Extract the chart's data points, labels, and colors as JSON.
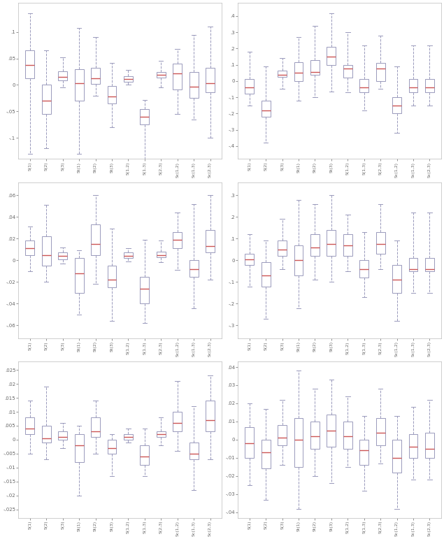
{
  "figsize": [
    6.35,
    7.71
  ],
  "dpi": 100,
  "box_facecolor": "white",
  "box_edgecolor": "#9999bb",
  "median_color": "#cc5555",
  "whisker_color": "#9999bb",
  "cap_color": "#9999bb",
  "background": "#ffffff",
  "x_labels": [
    "S(1)",
    "S(2)",
    "S(3)",
    "St(1)",
    "St(2)",
    "St(3)",
    "S(1,2)",
    "S(1,3)",
    "S(2,3)",
    "Sc(1,2)",
    "Sc(1,3)",
    "Sc(2,3)"
  ],
  "plots": [
    {
      "col": 0,
      "row": 0,
      "ylim": [
        -0.14,
        0.155
      ],
      "yticks": [
        -0.1,
        -0.05,
        0.0,
        0.05,
        0.1
      ],
      "boxes": [
        {
          "q1": 0.013,
          "med": 0.038,
          "q3": 0.065,
          "whislo": -0.13,
          "whishi": 0.135
        },
        {
          "q1": -0.055,
          "med": -0.03,
          "q3": 0.0,
          "whislo": -0.12,
          "whishi": 0.065
        },
        {
          "q1": 0.008,
          "med": 0.015,
          "q3": 0.026,
          "whislo": -0.005,
          "whishi": 0.052
        },
        {
          "q1": -0.03,
          "med": 0.003,
          "q3": 0.03,
          "whislo": -0.13,
          "whishi": 0.108
        },
        {
          "q1": 0.002,
          "med": 0.013,
          "q3": 0.033,
          "whislo": -0.02,
          "whishi": 0.09
        },
        {
          "q1": -0.035,
          "med": -0.022,
          "q3": -0.002,
          "whislo": -0.08,
          "whishi": 0.042
        },
        {
          "q1": 0.006,
          "med": 0.011,
          "q3": 0.016,
          "whislo": 0.001,
          "whishi": 0.028
        },
        {
          "q1": -0.075,
          "med": -0.06,
          "q3": -0.046,
          "whislo": -0.14,
          "whishi": -0.028
        },
        {
          "q1": 0.014,
          "med": 0.019,
          "q3": 0.025,
          "whislo": -0.004,
          "whishi": 0.045
        },
        {
          "q1": -0.008,
          "med": 0.022,
          "q3": 0.04,
          "whislo": -0.055,
          "whishi": 0.068
        },
        {
          "q1": -0.025,
          "med": -0.003,
          "q3": 0.025,
          "whislo": -0.065,
          "whishi": 0.095
        },
        {
          "q1": -0.014,
          "med": 0.003,
          "q3": 0.033,
          "whislo": -0.1,
          "whishi": 0.11
        }
      ]
    },
    {
      "col": 1,
      "row": 0,
      "ylim": [
        -0.48,
        0.48
      ],
      "yticks": [
        -0.4,
        -0.3,
        -0.2,
        -0.1,
        0.0,
        0.1,
        0.2,
        0.3,
        0.4
      ],
      "boxes": [
        {
          "q1": -0.08,
          "med": -0.04,
          "q3": 0.01,
          "whislo": -0.15,
          "whishi": 0.18
        },
        {
          "q1": -0.22,
          "med": -0.18,
          "q3": -0.12,
          "whislo": -0.38,
          "whishi": 0.09
        },
        {
          "q1": 0.025,
          "med": 0.04,
          "q3": 0.065,
          "whislo": -0.05,
          "whishi": 0.14
        },
        {
          "q1": 0.0,
          "med": 0.05,
          "q3": 0.115,
          "whislo": -0.12,
          "whishi": 0.27
        },
        {
          "q1": 0.04,
          "med": 0.057,
          "q3": 0.13,
          "whislo": -0.1,
          "whishi": 0.34
        },
        {
          "q1": 0.1,
          "med": 0.15,
          "q3": 0.21,
          "whislo": -0.065,
          "whishi": 0.415
        },
        {
          "q1": 0.02,
          "med": 0.075,
          "q3": 0.1,
          "whislo": -0.07,
          "whishi": 0.3
        },
        {
          "q1": -0.07,
          "med": -0.04,
          "q3": 0.01,
          "whislo": -0.18,
          "whishi": 0.22
        },
        {
          "q1": 0.0,
          "med": 0.075,
          "q3": 0.11,
          "whislo": -0.05,
          "whishi": 0.28
        },
        {
          "q1": -0.2,
          "med": -0.15,
          "q3": -0.1,
          "whislo": -0.32,
          "whishi": 0.09
        },
        {
          "q1": -0.07,
          "med": -0.04,
          "q3": 0.01,
          "whislo": -0.15,
          "whishi": 0.22
        },
        {
          "q1": -0.07,
          "med": -0.04,
          "q3": 0.01,
          "whislo": -0.15,
          "whishi": 0.22
        }
      ]
    },
    {
      "col": 0,
      "row": 1,
      "ylim": [
        -0.072,
        0.072
      ],
      "yticks": [
        -0.06,
        -0.04,
        -0.02,
        0.0,
        0.02,
        0.04,
        0.06
      ],
      "boxes": [
        {
          "q1": 0.005,
          "med": 0.011,
          "q3": 0.018,
          "whislo": -0.01,
          "whishi": 0.031
        },
        {
          "q1": -0.005,
          "med": 0.005,
          "q3": 0.022,
          "whislo": -0.02,
          "whishi": 0.051
        },
        {
          "q1": 0.001,
          "med": 0.004,
          "q3": 0.007,
          "whislo": -0.003,
          "whishi": 0.012
        },
        {
          "q1": -0.03,
          "med": -0.012,
          "q3": 0.002,
          "whislo": -0.05,
          "whishi": 0.009
        },
        {
          "q1": 0.005,
          "med": 0.015,
          "q3": 0.033,
          "whislo": -0.022,
          "whishi": 0.06
        },
        {
          "q1": -0.025,
          "med": -0.018,
          "q3": -0.005,
          "whislo": -0.056,
          "whishi": 0.029
        },
        {
          "q1": 0.002,
          "med": 0.004,
          "q3": 0.007,
          "whislo": -0.001,
          "whishi": 0.011
        },
        {
          "q1": -0.04,
          "med": -0.026,
          "q3": -0.015,
          "whislo": -0.058,
          "whishi": 0.019
        },
        {
          "q1": 0.003,
          "med": 0.005,
          "q3": 0.008,
          "whislo": -0.002,
          "whishi": 0.018
        },
        {
          "q1": 0.011,
          "med": 0.019,
          "q3": 0.026,
          "whislo": -0.009,
          "whishi": 0.044
        },
        {
          "q1": -0.015,
          "med": -0.008,
          "q3": 0.0,
          "whislo": -0.044,
          "whishi": 0.052
        },
        {
          "q1": 0.007,
          "med": 0.013,
          "q3": 0.028,
          "whislo": -0.018,
          "whishi": 0.06
        }
      ]
    },
    {
      "col": 1,
      "row": 1,
      "ylim": [
        -0.36,
        0.36
      ],
      "yticks": [
        -0.3,
        -0.2,
        -0.1,
        0.0,
        0.1,
        0.2,
        0.3
      ],
      "boxes": [
        {
          "q1": -0.02,
          "med": 0.005,
          "q3": 0.03,
          "whislo": -0.12,
          "whishi": 0.12
        },
        {
          "q1": -0.12,
          "med": -0.07,
          "q3": -0.01,
          "whislo": -0.27,
          "whishi": 0.09
        },
        {
          "q1": 0.02,
          "med": 0.05,
          "q3": 0.09,
          "whislo": -0.04,
          "whishi": 0.19
        },
        {
          "q1": -0.07,
          "med": 0.0,
          "q3": 0.07,
          "whislo": -0.22,
          "whishi": 0.28
        },
        {
          "q1": 0.02,
          "med": 0.06,
          "q3": 0.12,
          "whislo": -0.09,
          "whishi": 0.26
        },
        {
          "q1": 0.02,
          "med": 0.075,
          "q3": 0.14,
          "whislo": -0.1,
          "whishi": 0.3
        },
        {
          "q1": 0.02,
          "med": 0.07,
          "q3": 0.12,
          "whislo": -0.05,
          "whishi": 0.21
        },
        {
          "q1": -0.08,
          "med": -0.04,
          "q3": 0.0,
          "whislo": -0.17,
          "whishi": 0.13
        },
        {
          "q1": 0.03,
          "med": 0.075,
          "q3": 0.13,
          "whislo": -0.04,
          "whishi": 0.26
        },
        {
          "q1": -0.15,
          "med": -0.09,
          "q3": -0.02,
          "whislo": -0.28,
          "whishi": 0.09
        },
        {
          "q1": -0.05,
          "med": -0.04,
          "q3": 0.01,
          "whislo": -0.15,
          "whishi": 0.22
        },
        {
          "q1": -0.05,
          "med": -0.04,
          "q3": 0.01,
          "whislo": -0.15,
          "whishi": 0.22
        }
      ]
    },
    {
      "col": 0,
      "row": 2,
      "ylim": [
        -0.028,
        0.028
      ],
      "yticks": [
        -0.025,
        -0.02,
        -0.015,
        -0.01,
        -0.005,
        0.0,
        0.005,
        0.01,
        0.015,
        0.02,
        0.025
      ],
      "boxes": [
        {
          "q1": 0.002,
          "med": 0.004,
          "q3": 0.008,
          "whislo": -0.005,
          "whishi": 0.014
        },
        {
          "q1": -0.001,
          "med": 0.0005,
          "q3": 0.005,
          "whislo": -0.007,
          "whishi": 0.019
        },
        {
          "q1": 0.0,
          "med": 0.001,
          "q3": 0.003,
          "whislo": -0.003,
          "whishi": 0.006
        },
        {
          "q1": -0.008,
          "med": -0.002,
          "q3": 0.002,
          "whislo": -0.02,
          "whishi": 0.005
        },
        {
          "q1": 0.001,
          "med": 0.003,
          "q3": 0.008,
          "whislo": -0.005,
          "whishi": 0.014
        },
        {
          "q1": -0.005,
          "med": -0.003,
          "q3": 0.0,
          "whislo": -0.013,
          "whishi": 0.002
        },
        {
          "q1": 0.0,
          "med": 0.001,
          "q3": 0.002,
          "whislo": -0.001,
          "whishi": 0.004
        },
        {
          "q1": -0.009,
          "med": -0.006,
          "q3": -0.002,
          "whislo": -0.013,
          "whishi": 0.004
        },
        {
          "q1": 0.001,
          "med": 0.002,
          "q3": 0.003,
          "whislo": -0.002,
          "whishi": 0.008
        },
        {
          "q1": 0.003,
          "med": 0.006,
          "q3": 0.01,
          "whislo": -0.004,
          "whishi": 0.021
        },
        {
          "q1": -0.007,
          "med": -0.005,
          "q3": -0.001,
          "whislo": -0.018,
          "whishi": 0.012
        },
        {
          "q1": 0.003,
          "med": 0.007,
          "q3": 0.014,
          "whislo": -0.007,
          "whishi": 0.023
        }
      ]
    },
    {
      "col": 1,
      "row": 2,
      "ylim": [
        -0.043,
        0.043
      ],
      "yticks": [
        -0.04,
        -0.03,
        -0.02,
        -0.01,
        0.0,
        0.01,
        0.02,
        0.03,
        0.04
      ],
      "boxes": [
        {
          "q1": -0.01,
          "med": -0.002,
          "q3": 0.007,
          "whislo": -0.025,
          "whishi": 0.02
        },
        {
          "q1": -0.016,
          "med": -0.007,
          "q3": 0.0,
          "whislo": -0.033,
          "whishi": 0.017
        },
        {
          "q1": -0.003,
          "med": 0.001,
          "q3": 0.008,
          "whislo": -0.014,
          "whishi": 0.022
        },
        {
          "q1": -0.015,
          "med": 0.0,
          "q3": 0.012,
          "whislo": -0.038,
          "whishi": 0.038
        },
        {
          "q1": -0.005,
          "med": 0.002,
          "q3": 0.01,
          "whislo": -0.02,
          "whishi": 0.028
        },
        {
          "q1": -0.004,
          "med": 0.005,
          "q3": 0.014,
          "whislo": -0.024,
          "whishi": 0.033
        },
        {
          "q1": -0.005,
          "med": 0.002,
          "q3": 0.01,
          "whislo": -0.015,
          "whishi": 0.024
        },
        {
          "q1": -0.014,
          "med": -0.006,
          "q3": 0.0,
          "whislo": -0.028,
          "whishi": 0.013
        },
        {
          "q1": -0.003,
          "med": 0.004,
          "q3": 0.012,
          "whislo": -0.013,
          "whishi": 0.028
        },
        {
          "q1": -0.018,
          "med": -0.01,
          "q3": 0.0,
          "whislo": -0.038,
          "whishi": 0.013
        },
        {
          "q1": -0.01,
          "med": -0.004,
          "q3": 0.003,
          "whislo": -0.022,
          "whishi": 0.018
        },
        {
          "q1": -0.01,
          "med": -0.005,
          "q3": 0.004,
          "whislo": -0.022,
          "whishi": 0.022
        }
      ]
    }
  ]
}
